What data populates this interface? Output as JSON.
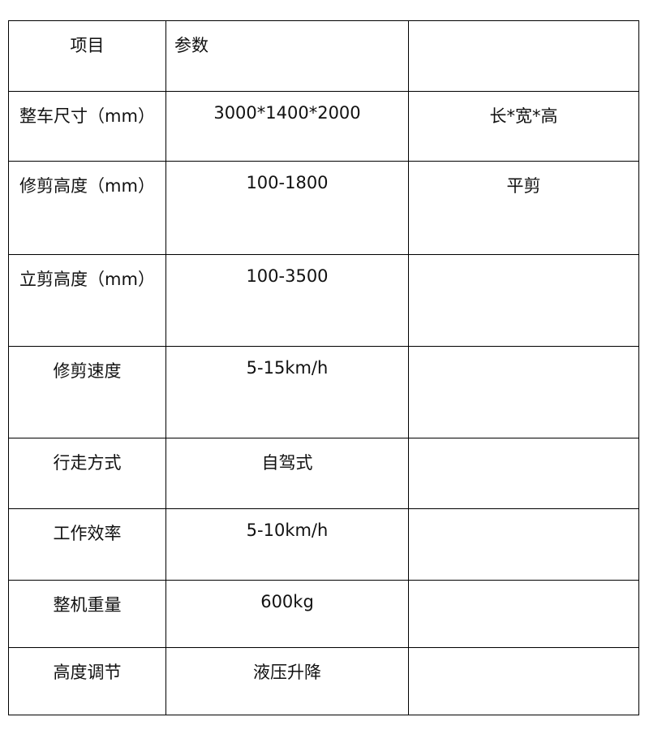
{
  "table": {
    "rows": [
      [
        "项目",
        "参数"
      ],
      [
        "整车尺寸（mm）",
        "3000*1400*2000",
        "长*宽*高"
      ],
      [
        "修剪高度（mm）",
        "100-1800",
        "平剪"
      ],
      [
        "立剪高度（mm）",
        "100-3500"
      ],
      [
        "修剪速度",
        "5-15km/h"
      ],
      [
        "行走方式",
        "自驾式"
      ],
      [
        "工作效率",
        "5-10km/h"
      ],
      [
        "整机重量",
        "600kg"
      ],
      [
        "高度调节",
        "液压升降"
      ]
    ]
  }
}
